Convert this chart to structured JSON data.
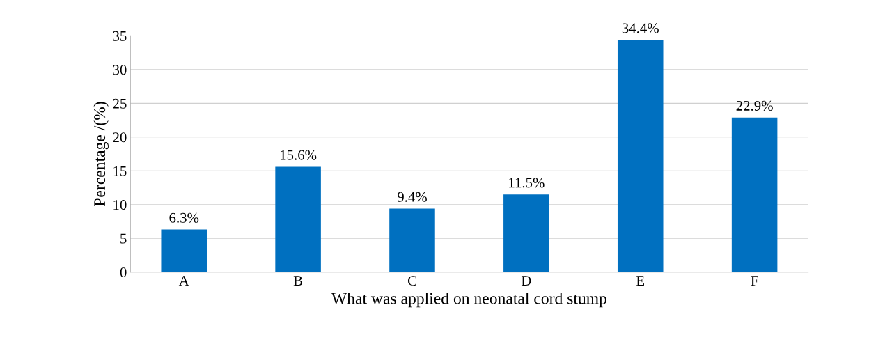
{
  "chart_data": {
    "type": "bar",
    "xlabel": "What was applied on neonatal cord stump",
    "ylabel": "Percentage /(%)",
    "categories": [
      "A",
      "B",
      "C",
      "D",
      "E",
      "F"
    ],
    "values": [
      6.3,
      15.6,
      9.4,
      11.5,
      34.4,
      22.9
    ],
    "value_labels": [
      "6.3%",
      "15.6%",
      "9.4%",
      "11.5%",
      "34.4%",
      "22.9%"
    ],
    "color": "#0070c0",
    "ylim": [
      0,
      35
    ],
    "yticks": [
      0,
      5,
      10,
      15,
      20,
      25,
      30,
      35
    ],
    "grid": "y",
    "legend": false
  }
}
